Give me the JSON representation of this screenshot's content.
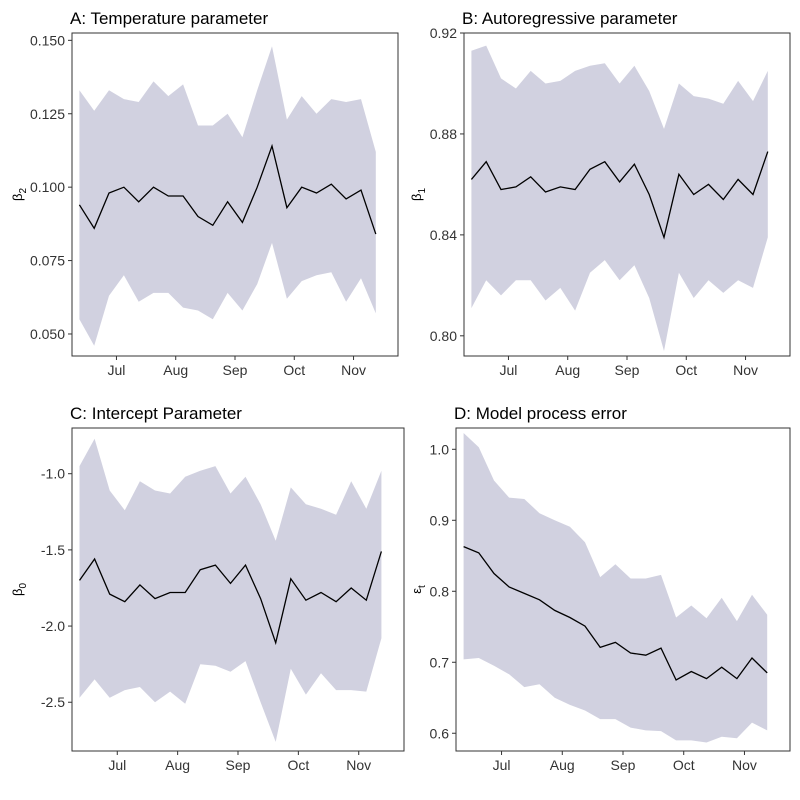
{
  "colors": {
    "band": "#d1d1e0",
    "line": "#000000",
    "frame": "#333333"
  },
  "chart_data": [
    {
      "id": "A",
      "type": "line",
      "title": "A: Temperature parameter",
      "ylabel": "β",
      "ylabel_sub": "2",
      "x_ticks": [
        "Jul",
        "Aug",
        "Sep",
        "Oct",
        "Nov"
      ],
      "y_ticks": [
        "0.050",
        "0.075",
        "0.100",
        "0.125",
        "0.150"
      ],
      "ylim": [
        0.0425,
        0.1525
      ],
      "xlim": [
        0.5,
        22.5
      ],
      "x_tick_positions": [
        3.5,
        7.5,
        11.5,
        15.5,
        19.5
      ],
      "grid": false,
      "series": [
        {
          "x": [
            1,
            2,
            3,
            4,
            5,
            6,
            7,
            8,
            9,
            10,
            11,
            12,
            13,
            14,
            15,
            16,
            17,
            18,
            19,
            20,
            21
          ],
          "values": [
            0.094,
            0.086,
            0.098,
            0.1,
            0.095,
            0.1,
            0.097,
            0.097,
            0.09,
            0.087,
            0.095,
            0.088,
            0.1,
            0.114,
            0.093,
            0.1,
            0.098,
            0.101,
            0.096,
            0.099,
            0.084
          ],
          "lower": [
            0.055,
            0.046,
            0.063,
            0.07,
            0.061,
            0.064,
            0.064,
            0.059,
            0.058,
            0.055,
            0.064,
            0.058,
            0.067,
            0.081,
            0.062,
            0.068,
            0.07,
            0.071,
            0.061,
            0.069,
            0.057
          ],
          "upper": [
            0.133,
            0.126,
            0.133,
            0.13,
            0.129,
            0.136,
            0.131,
            0.135,
            0.121,
            0.121,
            0.125,
            0.117,
            0.133,
            0.148,
            0.123,
            0.131,
            0.125,
            0.13,
            0.129,
            0.13,
            0.112
          ]
        }
      ]
    },
    {
      "id": "B",
      "type": "line",
      "title": "B: Autoregressive parameter",
      "ylabel": "β",
      "ylabel_sub": "1",
      "x_ticks": [
        "Jul",
        "Aug",
        "Sep",
        "Oct",
        "Nov"
      ],
      "y_ticks": [
        "0.80",
        "0.84",
        "0.88",
        "0.92"
      ],
      "ylim": [
        0.792,
        0.92
      ],
      "xlim": [
        0.5,
        22.5
      ],
      "x_tick_positions": [
        3.5,
        7.5,
        11.5,
        15.5,
        19.5
      ],
      "grid": false,
      "series": [
        {
          "x": [
            1,
            2,
            3,
            4,
            5,
            6,
            7,
            8,
            9,
            10,
            11,
            12,
            13,
            14,
            15,
            16,
            17,
            18,
            19,
            20,
            21
          ],
          "values": [
            0.862,
            0.869,
            0.858,
            0.859,
            0.863,
            0.857,
            0.859,
            0.858,
            0.866,
            0.869,
            0.861,
            0.868,
            0.856,
            0.839,
            0.864,
            0.856,
            0.86,
            0.854,
            0.862,
            0.856,
            0.873
          ],
          "lower": [
            0.811,
            0.822,
            0.816,
            0.822,
            0.822,
            0.814,
            0.819,
            0.81,
            0.825,
            0.83,
            0.822,
            0.828,
            0.815,
            0.794,
            0.825,
            0.815,
            0.822,
            0.817,
            0.822,
            0.819,
            0.839
          ],
          "upper": [
            0.913,
            0.915,
            0.902,
            0.898,
            0.905,
            0.9,
            0.901,
            0.905,
            0.907,
            0.908,
            0.9,
            0.907,
            0.897,
            0.882,
            0.9,
            0.895,
            0.894,
            0.892,
            0.901,
            0.893,
            0.905
          ]
        }
      ]
    },
    {
      "id": "C",
      "type": "line",
      "title": "C: Intercept Parameter",
      "ylabel": "β",
      "ylabel_sub": "0",
      "x_ticks": [
        "Jul",
        "Aug",
        "Sep",
        "Oct",
        "Nov"
      ],
      "y_ticks": [
        "-2.5",
        "-2.0",
        "-1.5",
        "-1.0"
      ],
      "ylim": [
        -2.82,
        -0.7
      ],
      "xlim": [
        0.5,
        22.5
      ],
      "x_tick_positions": [
        3.5,
        7.5,
        11.5,
        15.5,
        19.5
      ],
      "grid": false,
      "series": [
        {
          "x": [
            1,
            2,
            3,
            4,
            5,
            6,
            7,
            8,
            9,
            10,
            11,
            12,
            13,
            14,
            15,
            16,
            17,
            18,
            19,
            20,
            21
          ],
          "values": [
            -1.7,
            -1.56,
            -1.79,
            -1.84,
            -1.73,
            -1.82,
            -1.78,
            -1.78,
            -1.63,
            -1.6,
            -1.72,
            -1.6,
            -1.82,
            -2.11,
            -1.69,
            -1.83,
            -1.78,
            -1.84,
            -1.75,
            -1.83,
            -1.51
          ],
          "lower": [
            -2.47,
            -2.35,
            -2.47,
            -2.42,
            -2.4,
            -2.5,
            -2.43,
            -2.51,
            -2.25,
            -2.26,
            -2.3,
            -2.23,
            -2.5,
            -2.76,
            -2.28,
            -2.45,
            -2.31,
            -2.42,
            -2.42,
            -2.43,
            -2.08
          ],
          "upper": [
            -0.95,
            -0.77,
            -1.11,
            -1.24,
            -1.05,
            -1.11,
            -1.13,
            -1.02,
            -0.98,
            -0.95,
            -1.13,
            -1.02,
            -1.2,
            -1.44,
            -1.09,
            -1.2,
            -1.23,
            -1.27,
            -1.05,
            -1.23,
            -0.98
          ]
        }
      ]
    },
    {
      "id": "D",
      "type": "line",
      "title": "D: Model process error",
      "ylabel": "ε",
      "ylabel_sub": "t",
      "x_ticks": [
        "Jul",
        "Aug",
        "Sep",
        "Oct",
        "Nov"
      ],
      "y_ticks": [
        "0.6",
        "0.7",
        "0.8",
        "0.9",
        "1.0"
      ],
      "ylim": [
        0.575,
        1.03
      ],
      "xlim": [
        0.5,
        22.5
      ],
      "x_tick_positions": [
        3.5,
        7.5,
        11.5,
        15.5,
        19.5
      ],
      "grid": false,
      "series": [
        {
          "x": [
            1,
            2,
            3,
            4,
            5,
            6,
            7,
            8,
            9,
            10,
            11,
            12,
            13,
            14,
            15,
            16,
            17,
            18,
            19,
            20,
            21
          ],
          "values": [
            0.863,
            0.854,
            0.825,
            0.806,
            0.797,
            0.788,
            0.773,
            0.763,
            0.751,
            0.721,
            0.728,
            0.713,
            0.71,
            0.72,
            0.675,
            0.687,
            0.677,
            0.693,
            0.677,
            0.706,
            0.685
          ],
          "lower": [
            0.704,
            0.706,
            0.695,
            0.683,
            0.665,
            0.669,
            0.65,
            0.64,
            0.632,
            0.62,
            0.62,
            0.608,
            0.604,
            0.603,
            0.59,
            0.59,
            0.587,
            0.595,
            0.593,
            0.615,
            0.604
          ],
          "upper": [
            1.023,
            1.003,
            0.956,
            0.932,
            0.93,
            0.91,
            0.9,
            0.891,
            0.869,
            0.82,
            0.838,
            0.818,
            0.818,
            0.823,
            0.763,
            0.78,
            0.762,
            0.791,
            0.758,
            0.795,
            0.767
          ]
        }
      ]
    }
  ]
}
